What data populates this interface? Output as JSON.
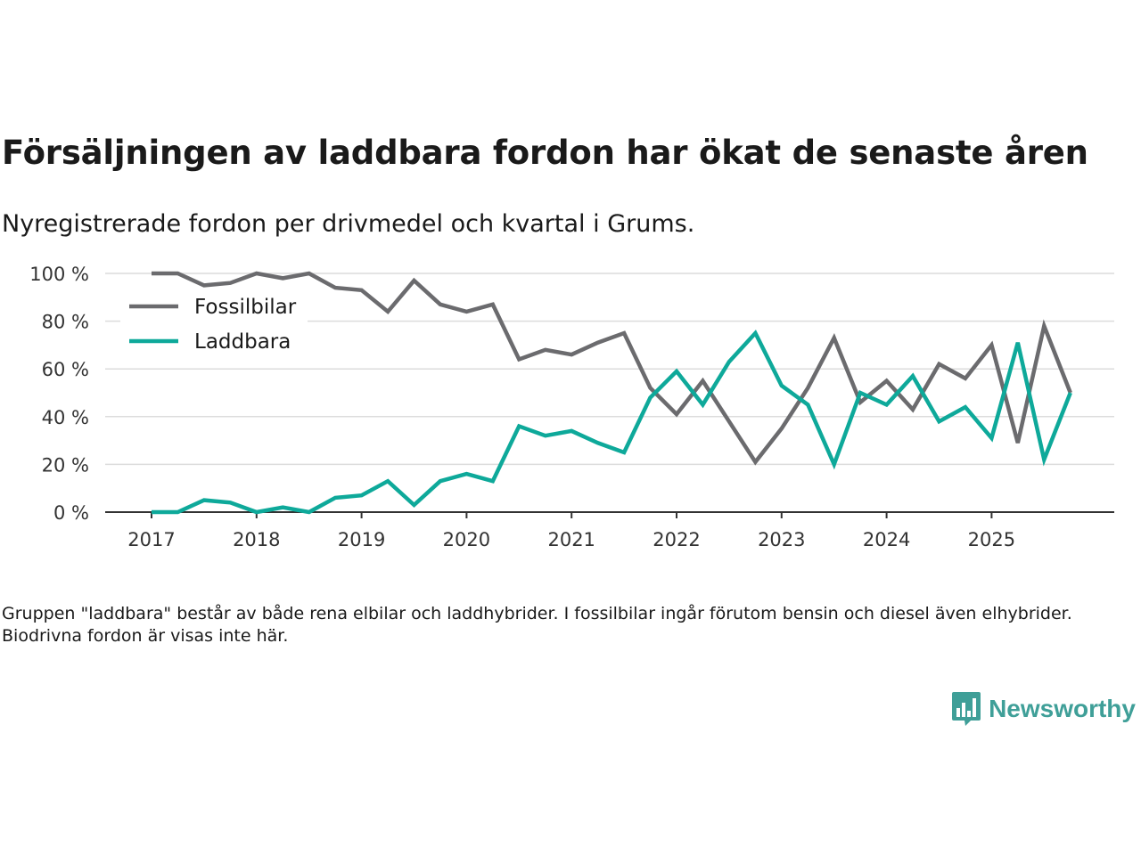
{
  "chart_data": {
    "type": "line",
    "title": "Försäljningen av laddbara fordon har ökat de senaste åren",
    "subtitle": "Nyregistrerade fordon per drivmedel och kvartal i Grums.",
    "xlabel": "",
    "ylabel": "",
    "ylim": [
      0,
      100
    ],
    "y_ticks": [
      0,
      20,
      40,
      60,
      80,
      100
    ],
    "y_tick_labels": [
      "0 %",
      "20 %",
      "40 %",
      "60 %",
      "80 %",
      "100 %"
    ],
    "x_tick_labels": [
      "2017",
      "2018",
      "2019",
      "2020",
      "2021",
      "2022",
      "2023",
      "2024",
      "2025"
    ],
    "x": [
      "2017 Q1",
      "2017 Q2",
      "2017 Q3",
      "2017 Q4",
      "2018 Q1",
      "2018 Q2",
      "2018 Q3",
      "2018 Q4",
      "2019 Q1",
      "2019 Q2",
      "2019 Q3",
      "2019 Q4",
      "2020 Q1",
      "2020 Q2",
      "2020 Q3",
      "2020 Q4",
      "2021 Q1",
      "2021 Q2",
      "2021 Q3",
      "2021 Q4",
      "2022 Q1",
      "2022 Q2",
      "2022 Q3",
      "2022 Q4",
      "2023 Q1",
      "2023 Q2",
      "2023 Q3",
      "2023 Q4",
      "2024 Q1",
      "2024 Q2",
      "2024 Q3",
      "2024 Q4",
      "2025 Q1",
      "2025 Q2",
      "2025 Q3",
      "2025 Q4"
    ],
    "series": [
      {
        "name": "Fossilbilar",
        "color": "#6b6b6e",
        "values": [
          100,
          100,
          95,
          96,
          100,
          98,
          100,
          94,
          93,
          84,
          97,
          87,
          84,
          87,
          64,
          68,
          66,
          71,
          75,
          52,
          41,
          55,
          38,
          21,
          35,
          52,
          73,
          46,
          55,
          43,
          62,
          56,
          70,
          29,
          78,
          50
        ]
      },
      {
        "name": "Laddbara",
        "color": "#0ea99a",
        "values": [
          0,
          0,
          5,
          4,
          0,
          2,
          0,
          6,
          7,
          13,
          3,
          13,
          16,
          13,
          36,
          32,
          34,
          29,
          25,
          48,
          59,
          45,
          63,
          75,
          53,
          45,
          20,
          50,
          45,
          57,
          38,
          44,
          31,
          71,
          22,
          50
        ]
      }
    ],
    "legend_position": "top-left",
    "grid": true
  },
  "footnote": "Gruppen \"laddbara\" består av både rena elbilar och laddhybrider. I fossilbilar ingår förutom bensin och diesel även elhybrider. Biodrivna fordon är visas inte här.",
  "brand": {
    "name": "Newsworthy",
    "icon": "bar-chart-icon",
    "color": "#3f9f98"
  }
}
